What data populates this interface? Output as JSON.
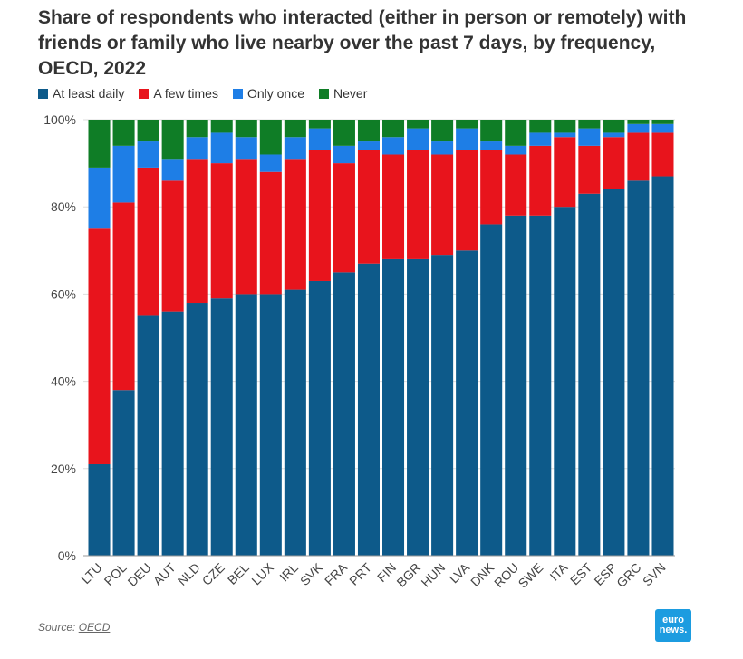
{
  "chart_data": {
    "type": "bar",
    "stacked": true,
    "title": "Share of respondents who interacted (either in person or remotely) with friends or family who live nearby over the past 7 days, by frequency, OECD, 2022",
    "categories": [
      "LTU",
      "POL",
      "DEU",
      "AUT",
      "NLD",
      "CZE",
      "BEL",
      "LUX",
      "IRL",
      "SVK",
      "FRA",
      "PRT",
      "FIN",
      "BGR",
      "HUN",
      "LVA",
      "DNK",
      "ROU",
      "SWE",
      "ITA",
      "EST",
      "ESP",
      "GRC",
      "SVN"
    ],
    "series": [
      {
        "name": "At least daily",
        "color": "#0d5a8a",
        "values": [
          21,
          38,
          55,
          56,
          58,
          59,
          60,
          60,
          61,
          63,
          65,
          67,
          68,
          68,
          69,
          70,
          76,
          78,
          78,
          80,
          83,
          84,
          86,
          87
        ]
      },
      {
        "name": "A few times",
        "color": "#e8141c",
        "values": [
          54,
          43,
          34,
          30,
          33,
          31,
          31,
          28,
          30,
          30,
          25,
          26,
          24,
          25,
          23,
          23,
          17,
          14,
          16,
          16,
          11,
          12,
          11,
          10
        ]
      },
      {
        "name": "Only once",
        "color": "#1e7ee6",
        "values": [
          14,
          13,
          6,
          5,
          5,
          7,
          5,
          4,
          5,
          5,
          4,
          2,
          4,
          5,
          3,
          5,
          2,
          2,
          3,
          1,
          4,
          1,
          2,
          2
        ]
      },
      {
        "name": "Never",
        "color": "#0f7d26",
        "values": [
          11,
          6,
          5,
          9,
          4,
          3,
          4,
          8,
          4,
          2,
          6,
          5,
          4,
          2,
          5,
          2,
          5,
          6,
          3,
          3,
          2,
          3,
          1,
          1
        ]
      }
    ],
    "ylim": [
      0,
      100
    ],
    "yticks": [
      "0%",
      "20%",
      "40%",
      "60%",
      "80%",
      "100%"
    ],
    "xlabel": "",
    "ylabel": "",
    "legend_position": "top-left"
  },
  "source": {
    "label": "Source:",
    "link": "OECD"
  },
  "logo": {
    "line1": "euro",
    "line2": "news."
  }
}
